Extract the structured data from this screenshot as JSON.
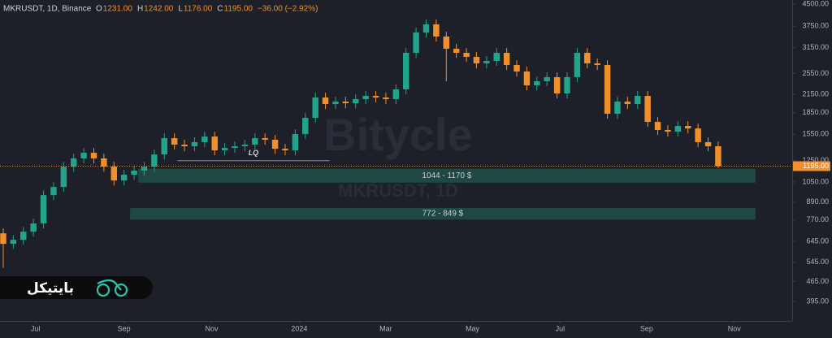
{
  "chart_data": {
    "type": "candlestick",
    "header": {
      "symbol": "MKRUSDT, 1D, Binance",
      "fields": [
        {
          "key": "O",
          "value": "1231.00"
        },
        {
          "key": "H",
          "value": "1242.00"
        },
        {
          "key": "L",
          "value": "1176.00"
        },
        {
          "key": "C",
          "value": "1195.00"
        }
      ],
      "change": "−36.00 (−2.92%)"
    },
    "watermark": [
      "Bitycle",
      "MKRUSDT, 1D"
    ],
    "brand": "بایتیکل",
    "log_scale": true,
    "grid": false,
    "up_color": "#22a38c",
    "down_color": "#f0902c",
    "xlim": [
      -0.32,
      78.35
    ],
    "xticks": [
      {
        "value": 3.2,
        "label": "Jul"
      },
      {
        "value": 12.0,
        "label": "Sep"
      },
      {
        "value": 20.7,
        "label": "Nov"
      },
      {
        "value": 29.4,
        "label": "2024"
      },
      {
        "value": 38.0,
        "label": "Mar"
      },
      {
        "value": 46.6,
        "label": "May"
      },
      {
        "value": 55.3,
        "label": "Jul"
      },
      {
        "value": 63.9,
        "label": "Sep"
      },
      {
        "value": 72.6,
        "label": "Nov"
      }
    ],
    "ylim": [
      337,
      4650
    ],
    "yticks": [
      {
        "value": 4500,
        "label": "4500.00"
      },
      {
        "value": 3750,
        "label": "3750.00"
      },
      {
        "value": 3150,
        "label": "3150.00"
      },
      {
        "value": 2550,
        "label": "2550.00"
      },
      {
        "value": 2150,
        "label": "2150.00"
      },
      {
        "value": 1850,
        "label": "1850.00"
      },
      {
        "value": 1550,
        "label": "1550.00"
      },
      {
        "value": 1250,
        "label": "1250.00"
      },
      {
        "value": 1050,
        "label": "1050.00"
      },
      {
        "value": 890,
        "label": "890.00"
      },
      {
        "value": 770,
        "label": "770.00"
      },
      {
        "value": 645,
        "label": "645.00"
      },
      {
        "value": 545,
        "label": "545.00"
      },
      {
        "value": 465,
        "label": "465.00"
      },
      {
        "value": 395,
        "label": "395.00"
      }
    ],
    "last_price": {
      "value": 1195,
      "label": "1195.00"
    },
    "zones": [
      {
        "low": 1044,
        "high": 1170,
        "from": 13.4,
        "to": 74.7,
        "label": "1044 - 1170 $"
      },
      {
        "low": 772,
        "high": 849,
        "from": 12.6,
        "to": 74.7,
        "label": "772 - 849 $"
      }
    ],
    "level": {
      "value": 1250,
      "from": 17.3,
      "to": 32.4,
      "label": "LQ"
    },
    "open": [
      690,
      633,
      654,
      699,
      748,
      943,
      1008,
      1190,
      1273,
      1333,
      1273,
      1190,
      1063,
      1114,
      1152,
      1190,
      1315,
      1502,
      1425,
      1406,
      1454,
      1522,
      1360,
      1387,
      1406,
      1425,
      1502,
      1483,
      1378,
      1360,
      1553,
      1774,
      2095,
      1986,
      2026,
      1999,
      2067,
      2123,
      2095,
      2067,
      2239,
      3019,
      3566,
      3811,
      3449,
      3122,
      3019,
      2921,
      2770,
      2826,
      3019,
      2733,
      2591,
      2314,
      2393,
      2474,
      2166,
      2474,
      3019,
      2770,
      2733,
      1834,
      2026,
      1986,
      2123,
      1716,
      1606,
      1584,
      1660,
      1627,
      1454,
      1406
    ],
    "high": [
      718,
      680,
      727,
      778,
      981,
      1048,
      1238,
      1324,
      1386,
      1386,
      1324,
      1238,
      1159,
      1198,
      1238,
      1368,
      1562,
      1562,
      1482,
      1512,
      1583,
      1583,
      1442,
      1462,
      1482,
      1562,
      1562,
      1542,
      1433,
      1615,
      1845,
      2179,
      2179,
      2107,
      2107,
      2150,
      2208,
      2208,
      2179,
      2329,
      3140,
      3709,
      3963,
      3963,
      3587,
      3247,
      3140,
      3038,
      2939,
      3140,
      3140,
      2842,
      2695,
      2489,
      2573,
      2573,
      2573,
      3140,
      3140,
      2881,
      2842,
      2107,
      2107,
      2208,
      2208,
      1785,
      1670,
      1726,
      1726,
      1692,
      1512,
      1462
    ],
    "low": [
      520,
      608,
      628,
      671,
      718,
      905,
      968,
      1142,
      1222,
      1222,
      1142,
      1020,
      1020,
      1069,
      1106,
      1142,
      1262,
      1368,
      1350,
      1350,
      1396,
      1306,
      1306,
      1332,
      1350,
      1368,
      1424,
      1323,
      1306,
      1306,
      1491,
      1703,
      1907,
      1907,
      1919,
      1919,
      1984,
      2011,
      1984,
      1984,
      2149,
      2898,
      3423,
      3311,
      2393,
      2898,
      2804,
      2659,
      2659,
      2713,
      2624,
      2487,
      2221,
      2221,
      2297,
      2079,
      2079,
      2375,
      2659,
      2624,
      1761,
      1761,
      1907,
      1907,
      1647,
      1542,
      1521,
      1521,
      1562,
      1396,
      1350,
      1176
    ],
    "close": [
      633,
      654,
      699,
      748,
      943,
      1008,
      1190,
      1273,
      1333,
      1273,
      1190,
      1063,
      1114,
      1152,
      1190,
      1315,
      1502,
      1425,
      1406,
      1454,
      1522,
      1360,
      1387,
      1406,
      1425,
      1502,
      1483,
      1378,
      1360,
      1553,
      1774,
      2095,
      1986,
      2026,
      1999,
      2067,
      2123,
      2095,
      2067,
      2239,
      3019,
      3566,
      3811,
      3449,
      3122,
      3019,
      2921,
      2770,
      2826,
      3019,
      2733,
      2591,
      2314,
      2393,
      2474,
      2166,
      2474,
      3019,
      2770,
      2733,
      1834,
      2026,
      1986,
      2123,
      1716,
      1606,
      1584,
      1660,
      1627,
      1454,
      1406,
      1195
    ]
  }
}
